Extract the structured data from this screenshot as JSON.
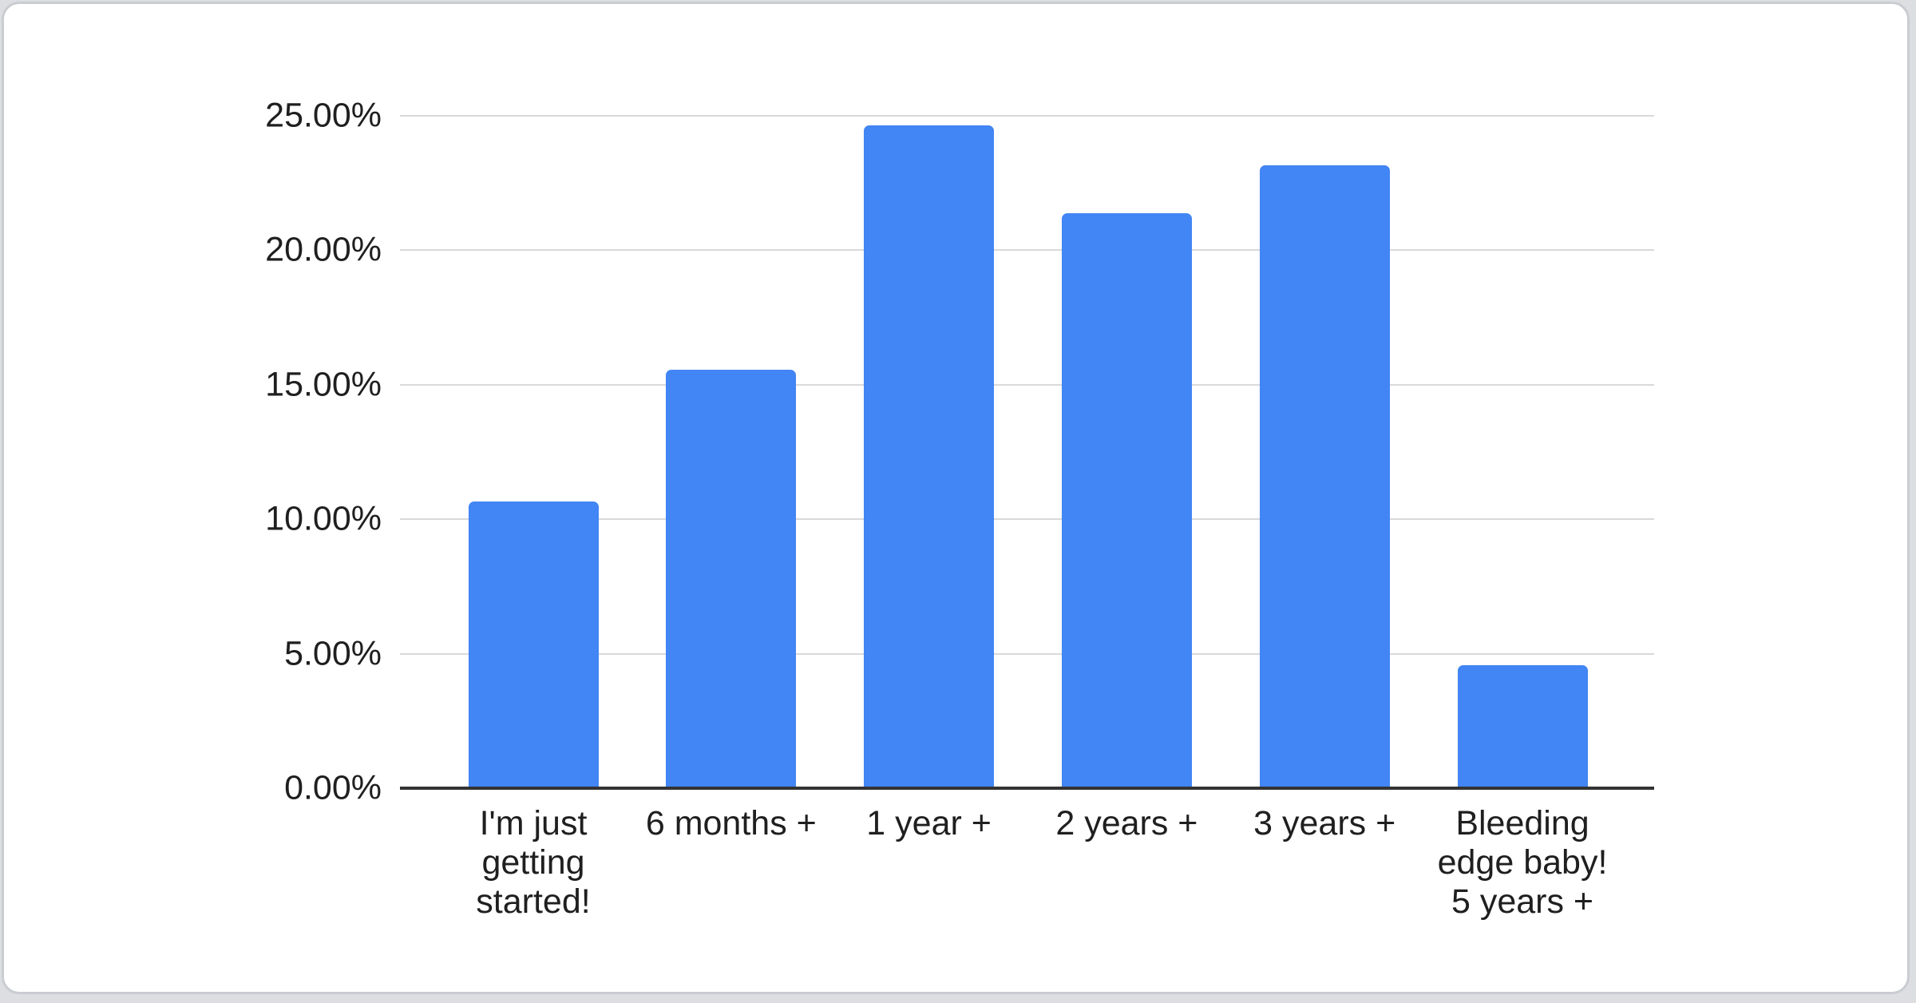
{
  "page": {
    "background_color": "#dcdee2"
  },
  "card": {
    "background_color": "#ffffff",
    "border_color": "#c9ccd1"
  },
  "chart_data": {
    "type": "bar",
    "title": "",
    "xlabel": "",
    "ylabel": "",
    "legend": "none",
    "grid": true,
    "categories": [
      "I'm just getting started!",
      "6 months +",
      "1 year +",
      "2 years +",
      "3 years +",
      "Bleeding edge baby! 5 years +"
    ],
    "category_lines": [
      [
        "I'm just",
        "getting",
        "started!"
      ],
      [
        "6 months +"
      ],
      [
        "1 year +"
      ],
      [
        "2 years +"
      ],
      [
        "3 years +"
      ],
      [
        "Bleeding",
        "edge baby!",
        "5 years +"
      ]
    ],
    "values": [
      10.66,
      15.57,
      24.64,
      21.38,
      23.17,
      4.57
    ],
    "unit": "%",
    "ylim": [
      0,
      25
    ],
    "y_tick_values": [
      0,
      5,
      10,
      15,
      20,
      25
    ],
    "y_tick_labels": [
      "0.00%",
      "5.00%",
      "10.00%",
      "15.00%",
      "20.00%",
      "25.00%"
    ],
    "bar_color": "#4285f4",
    "gridline_color": "#d9d9d9",
    "axis_line_color": "#333333",
    "text_color": "#1f1f1f"
  }
}
